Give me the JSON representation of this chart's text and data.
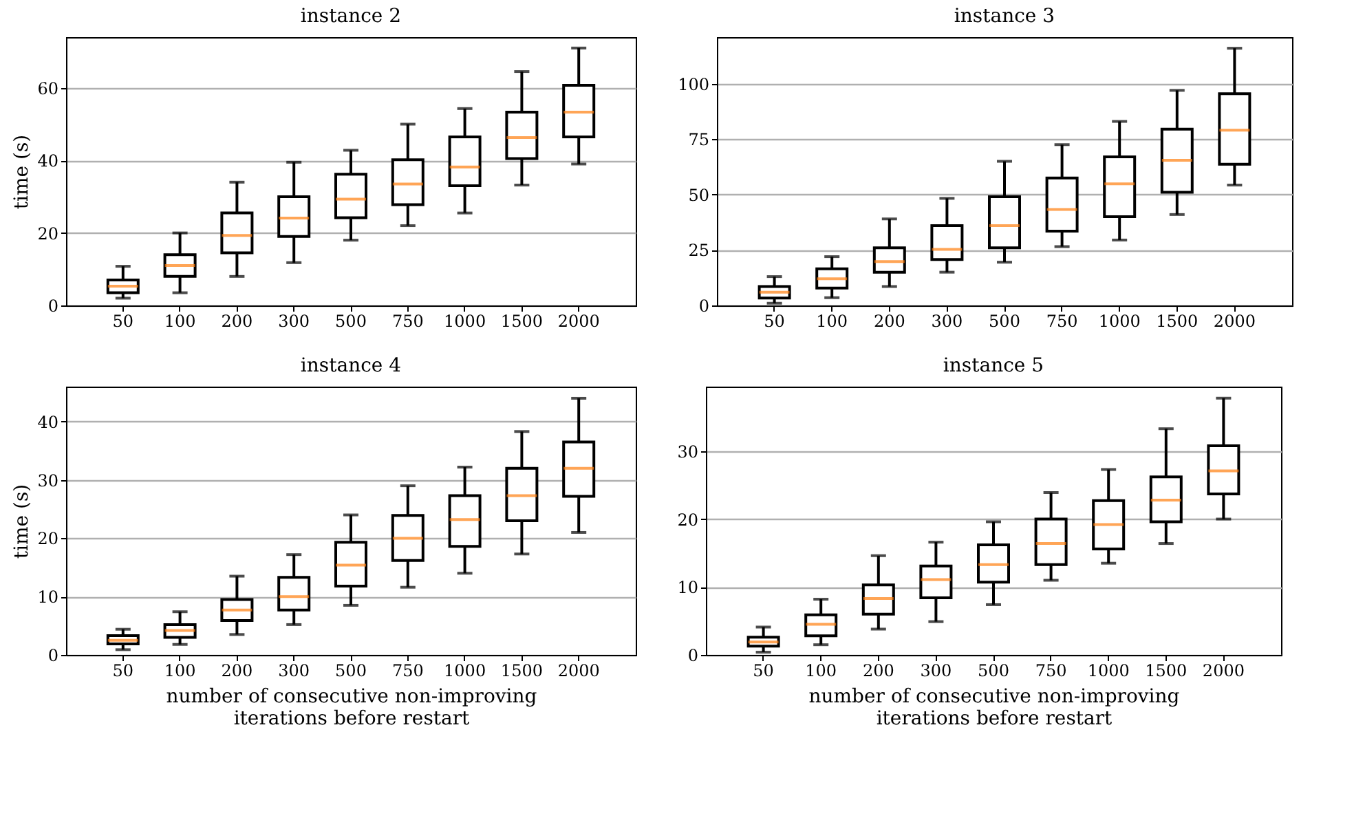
{
  "chart_data": [
    {
      "type": "box",
      "title": "instance 2",
      "ylabel": "time (s)",
      "categories": [
        "50",
        "100",
        "200",
        "300",
        "500",
        "750",
        "1000",
        "1500",
        "2000"
      ],
      "ylim": [
        0,
        74
      ],
      "yticks": [
        0,
        20,
        40,
        60
      ],
      "grid": "y",
      "boxes": [
        {
          "low": 2,
          "q1": 3.5,
          "median": 5.3,
          "q3": 7,
          "high": 10.8
        },
        {
          "low": 3.5,
          "q1": 8,
          "median": 11,
          "q3": 14,
          "high": 20
        },
        {
          "low": 8,
          "q1": 14.5,
          "median": 19.3,
          "q3": 25.5,
          "high": 34
        },
        {
          "low": 11.8,
          "q1": 19,
          "median": 24.1,
          "q3": 30,
          "high": 39.5
        },
        {
          "low": 18,
          "q1": 24.2,
          "median": 29.3,
          "q3": 36.2,
          "high": 42.8
        },
        {
          "low": 22,
          "q1": 27.8,
          "median": 33.5,
          "q3": 40.2,
          "high": 50
        },
        {
          "low": 25.5,
          "q1": 33,
          "median": 38.2,
          "q3": 46.5,
          "high": 54.3
        },
        {
          "low": 33.2,
          "q1": 40.5,
          "median": 46.3,
          "q3": 53.3,
          "high": 64.5
        },
        {
          "low": 39,
          "q1": 46.5,
          "median": 53.3,
          "q3": 60.7,
          "high": 71
        }
      ]
    },
    {
      "type": "box",
      "title": "instance 3",
      "categories": [
        "50",
        "100",
        "200",
        "300",
        "500",
        "750",
        "1000",
        "1500",
        "2000"
      ],
      "ylim": [
        0,
        121
      ],
      "yticks": [
        0,
        25,
        50,
        75,
        100
      ],
      "grid": "y",
      "boxes": [
        {
          "low": 1,
          "q1": 3.3,
          "median": 6,
          "q3": 8.5,
          "high": 13
        },
        {
          "low": 3.5,
          "q1": 7.8,
          "median": 12,
          "q3": 16.5,
          "high": 22
        },
        {
          "low": 8.5,
          "q1": 15,
          "median": 19.8,
          "q3": 26,
          "high": 39
        },
        {
          "low": 15,
          "q1": 20.7,
          "median": 25.3,
          "q3": 36,
          "high": 48.3
        },
        {
          "low": 19.5,
          "q1": 26,
          "median": 36,
          "q3": 49,
          "high": 65
        },
        {
          "low": 26.5,
          "q1": 33.5,
          "median": 43.3,
          "q3": 57.5,
          "high": 72.5
        },
        {
          "low": 29.5,
          "q1": 40,
          "median": 54.8,
          "q3": 67,
          "high": 83
        },
        {
          "low": 41,
          "q1": 51,
          "median": 65.5,
          "q3": 79.5,
          "high": 97
        },
        {
          "low": 54.3,
          "q1": 63.7,
          "median": 79,
          "q3": 95.5,
          "high": 116
        }
      ]
    },
    {
      "type": "box",
      "title": "instance 4",
      "ylabel": "time (s)",
      "xlabel": "number of consecutive non-improving\niterations before restart",
      "categories": [
        "50",
        "100",
        "200",
        "300",
        "500",
        "750",
        "1000",
        "1500",
        "2000"
      ],
      "ylim": [
        0,
        46
      ],
      "yticks": [
        0,
        10,
        20,
        30,
        40
      ],
      "grid": "y",
      "boxes": [
        {
          "low": 0.9,
          "q1": 1.9,
          "median": 2.5,
          "q3": 3.3,
          "high": 4.4
        },
        {
          "low": 1.8,
          "q1": 3,
          "median": 4.2,
          "q3": 5.2,
          "high": 7.4
        },
        {
          "low": 3.5,
          "q1": 5.9,
          "median": 7.7,
          "q3": 9.5,
          "high": 13.5
        },
        {
          "low": 5.2,
          "q1": 7.7,
          "median": 10,
          "q3": 13.3,
          "high": 17.2
        },
        {
          "low": 8.5,
          "q1": 11.8,
          "median": 15.4,
          "q3": 19.3,
          "high": 24
        },
        {
          "low": 11.6,
          "q1": 16.2,
          "median": 20,
          "q3": 23.9,
          "high": 29
        },
        {
          "low": 14,
          "q1": 18.6,
          "median": 23.2,
          "q3": 27.3,
          "high": 32.2
        },
        {
          "low": 17.3,
          "q1": 23,
          "median": 27.3,
          "q3": 32,
          "high": 38.3
        },
        {
          "low": 21,
          "q1": 27.2,
          "median": 32,
          "q3": 36.5,
          "high": 44
        }
      ]
    },
    {
      "type": "box",
      "title": "instance 5",
      "xlabel": "number of consecutive non-improving\niterations before restart",
      "categories": [
        "50",
        "100",
        "200",
        "300",
        "500",
        "750",
        "1000",
        "1500",
        "2000"
      ],
      "ylim": [
        0,
        39.5
      ],
      "yticks": [
        0,
        10,
        20,
        30
      ],
      "grid": "y",
      "boxes": [
        {
          "low": 0.4,
          "q1": 1.3,
          "median": 1.9,
          "q3": 2.6,
          "high": 4.1
        },
        {
          "low": 1.5,
          "q1": 2.8,
          "median": 4.5,
          "q3": 5.9,
          "high": 8.2
        },
        {
          "low": 3.8,
          "q1": 6,
          "median": 8.3,
          "q3": 10.3,
          "high": 14.6
        },
        {
          "low": 4.9,
          "q1": 8.4,
          "median": 11.1,
          "q3": 13.1,
          "high": 16.6
        },
        {
          "low": 7.4,
          "q1": 10.7,
          "median": 13.3,
          "q3": 16.2,
          "high": 19.6
        },
        {
          "low": 11,
          "q1": 13.3,
          "median": 16.4,
          "q3": 20,
          "high": 23.9
        },
        {
          "low": 13.5,
          "q1": 15.6,
          "median": 19.2,
          "q3": 22.7,
          "high": 27.3
        },
        {
          "low": 16.4,
          "q1": 19.6,
          "median": 22.8,
          "q3": 26.2,
          "high": 33.3
        },
        {
          "low": 20,
          "q1": 23.7,
          "median": 27.1,
          "q3": 30.8,
          "high": 37.8
        }
      ]
    }
  ]
}
